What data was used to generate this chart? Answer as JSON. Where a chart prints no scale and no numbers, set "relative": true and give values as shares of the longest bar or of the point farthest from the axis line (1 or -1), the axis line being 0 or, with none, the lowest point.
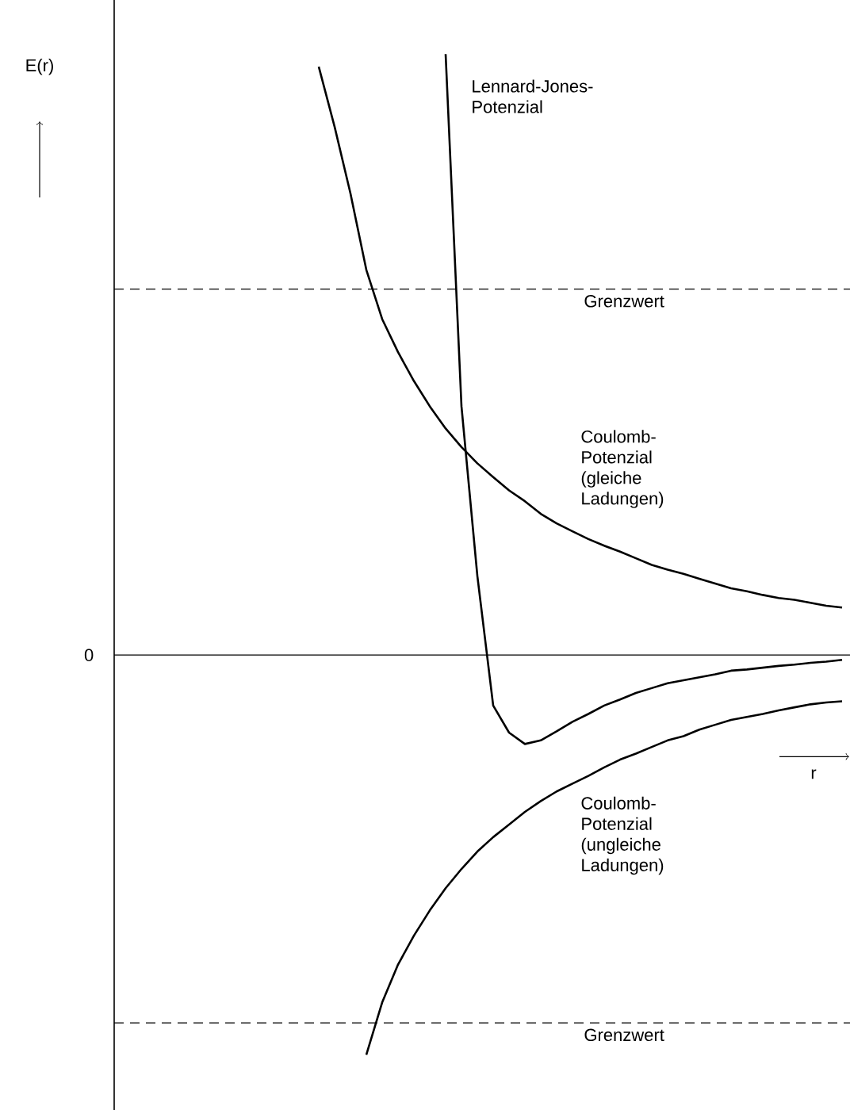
{
  "chart_data": {
    "type": "line",
    "relative": true,
    "xlabel": "r",
    "ylabel": "E(r)",
    "marker": "none",
    "line_style": "solid",
    "categories": [
      null,
      null,
      null,
      null,
      null,
      null,
      null,
      null,
      null,
      null,
      null,
      null,
      null,
      null,
      null,
      null,
      null,
      null,
      null,
      null,
      null,
      null,
      null,
      null,
      null,
      null,
      null,
      null,
      null,
      null,
      null,
      null,
      null,
      null,
      null,
      null,
      null,
      null,
      null,
      null,
      null,
      null,
      null,
      null,
      null,
      null
    ],
    "series": [
      {
        "name": "Lennard-Jones-Potenzial",
        "color": "#000000",
        "values": [
          null,
          null,
          null,
          null,
          null,
          null,
          null,
          null,
          null,
          null,
          null,
          null,
          null,
          null,
          null,
          null,
          null,
          null,
          null,
          null,
          1.0,
          0.414,
          0.132,
          -0.084,
          -0.129,
          -0.148,
          -0.142,
          -0.127,
          -0.111,
          -0.098,
          -0.084,
          -0.074,
          -0.063,
          -0.055,
          -0.047,
          -0.042,
          -0.037,
          -0.032,
          -0.026,
          -0.024,
          -0.021,
          -0.018,
          -0.016,
          -0.013,
          -0.011,
          -0.008
        ]
      },
      {
        "name": "Coulomb-Potenzial (gleiche Ladungen)",
        "color": "#000000",
        "values": [
          null,
          null,
          null,
          null,
          null,
          null,
          null,
          null,
          null,
          null,
          null,
          null,
          0.979,
          0.879,
          0.768,
          0.641,
          0.559,
          0.504,
          0.456,
          0.414,
          0.377,
          0.346,
          0.319,
          0.296,
          0.274,
          0.256,
          0.235,
          0.219,
          0.206,
          0.193,
          0.182,
          0.172,
          0.161,
          0.15,
          0.142,
          0.135,
          0.127,
          0.119,
          0.111,
          0.106,
          0.1,
          0.095,
          0.092,
          0.087,
          0.082,
          0.079
        ]
      },
      {
        "name": "Coulomb-Potenzial (ungleiche Ladungen)",
        "color": "#000000",
        "values": [
          null,
          null,
          null,
          null,
          null,
          null,
          null,
          null,
          null,
          null,
          null,
          null,
          null,
          null,
          null,
          -0.665,
          -0.578,
          -0.515,
          -0.467,
          -0.425,
          -0.388,
          -0.356,
          -0.327,
          -0.303,
          -0.282,
          -0.261,
          -0.243,
          -0.227,
          -0.214,
          -0.201,
          -0.187,
          -0.174,
          -0.164,
          -0.153,
          -0.142,
          -0.135,
          -0.124,
          -0.116,
          -0.108,
          -0.103,
          -0.098,
          -0.092,
          -0.087,
          -0.082,
          -0.079,
          -0.077
        ]
      }
    ],
    "ref_lines": [
      {
        "axis": "y",
        "value": 0.609,
        "label": "Grenzwert",
        "line_style": "dashed"
      },
      {
        "axis": "y",
        "value": 0,
        "label": "0",
        "line_style": "solid"
      },
      {
        "axis": "y",
        "value": -0.612,
        "label": "Grenzwert",
        "line_style": "dashed"
      }
    ]
  }
}
